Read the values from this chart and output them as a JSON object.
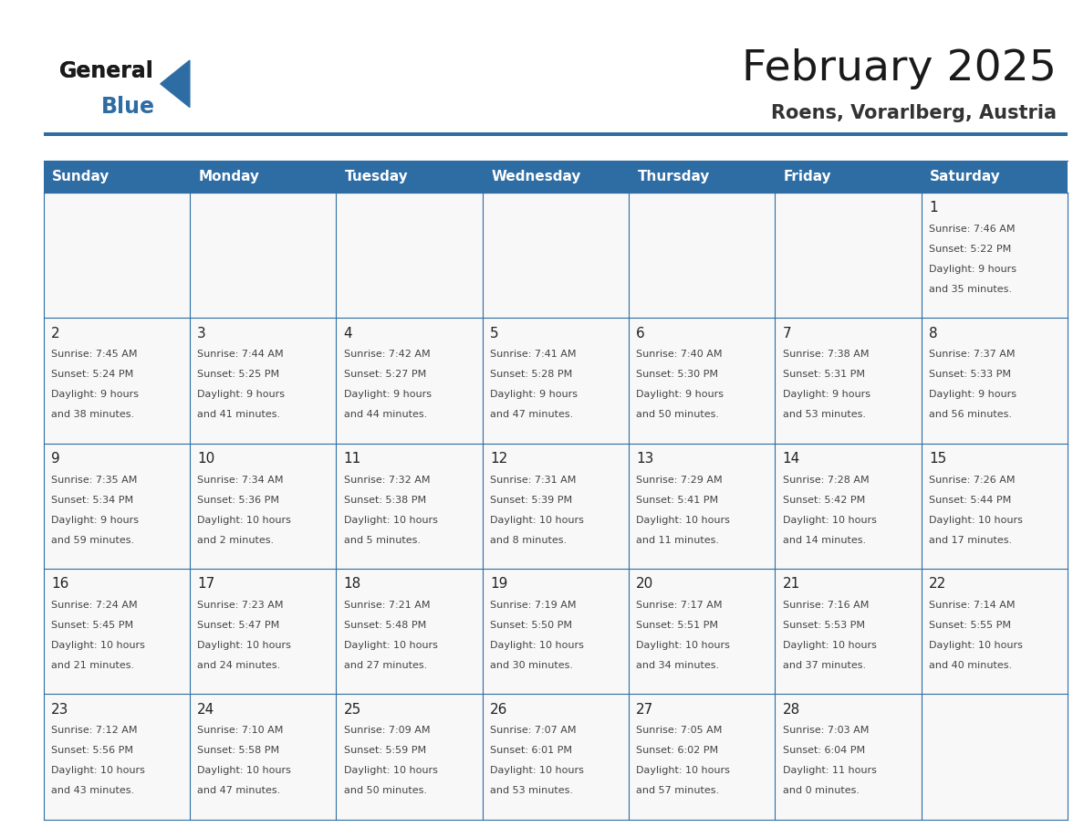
{
  "title": "February 2025",
  "subtitle": "Roens, Vorarlberg, Austria",
  "header_bg": "#2E6DA4",
  "header_text": "#FFFFFF",
  "cell_bg": "#F8F8F8",
  "grid_line_color": "#2E6DA4",
  "day_headers": [
    "Sunday",
    "Monday",
    "Tuesday",
    "Wednesday",
    "Thursday",
    "Friday",
    "Saturday"
  ],
  "logo_color_general": "#1a1a1a",
  "logo_color_blue": "#2E6DA4",
  "title_color": "#1a1a1a",
  "subtitle_color": "#333333",
  "days": [
    {
      "day": 1,
      "col": 6,
      "row": 0,
      "sunrise": "7:46 AM",
      "sunset": "5:22 PM",
      "daylight": "9 hours",
      "daylight2": "and 35 minutes."
    },
    {
      "day": 2,
      "col": 0,
      "row": 1,
      "sunrise": "7:45 AM",
      "sunset": "5:24 PM",
      "daylight": "9 hours",
      "daylight2": "and 38 minutes."
    },
    {
      "day": 3,
      "col": 1,
      "row": 1,
      "sunrise": "7:44 AM",
      "sunset": "5:25 PM",
      "daylight": "9 hours",
      "daylight2": "and 41 minutes."
    },
    {
      "day": 4,
      "col": 2,
      "row": 1,
      "sunrise": "7:42 AM",
      "sunset": "5:27 PM",
      "daylight": "9 hours",
      "daylight2": "and 44 minutes."
    },
    {
      "day": 5,
      "col": 3,
      "row": 1,
      "sunrise": "7:41 AM",
      "sunset": "5:28 PM",
      "daylight": "9 hours",
      "daylight2": "and 47 minutes."
    },
    {
      "day": 6,
      "col": 4,
      "row": 1,
      "sunrise": "7:40 AM",
      "sunset": "5:30 PM",
      "daylight": "9 hours",
      "daylight2": "and 50 minutes."
    },
    {
      "day": 7,
      "col": 5,
      "row": 1,
      "sunrise": "7:38 AM",
      "sunset": "5:31 PM",
      "daylight": "9 hours",
      "daylight2": "and 53 minutes."
    },
    {
      "day": 8,
      "col": 6,
      "row": 1,
      "sunrise": "7:37 AM",
      "sunset": "5:33 PM",
      "daylight": "9 hours",
      "daylight2": "and 56 minutes."
    },
    {
      "day": 9,
      "col": 0,
      "row": 2,
      "sunrise": "7:35 AM",
      "sunset": "5:34 PM",
      "daylight": "9 hours",
      "daylight2": "and 59 minutes."
    },
    {
      "day": 10,
      "col": 1,
      "row": 2,
      "sunrise": "7:34 AM",
      "sunset": "5:36 PM",
      "daylight": "10 hours",
      "daylight2": "and 2 minutes."
    },
    {
      "day": 11,
      "col": 2,
      "row": 2,
      "sunrise": "7:32 AM",
      "sunset": "5:38 PM",
      "daylight": "10 hours",
      "daylight2": "and 5 minutes."
    },
    {
      "day": 12,
      "col": 3,
      "row": 2,
      "sunrise": "7:31 AM",
      "sunset": "5:39 PM",
      "daylight": "10 hours",
      "daylight2": "and 8 minutes."
    },
    {
      "day": 13,
      "col": 4,
      "row": 2,
      "sunrise": "7:29 AM",
      "sunset": "5:41 PM",
      "daylight": "10 hours",
      "daylight2": "and 11 minutes."
    },
    {
      "day": 14,
      "col": 5,
      "row": 2,
      "sunrise": "7:28 AM",
      "sunset": "5:42 PM",
      "daylight": "10 hours",
      "daylight2": "and 14 minutes."
    },
    {
      "day": 15,
      "col": 6,
      "row": 2,
      "sunrise": "7:26 AM",
      "sunset": "5:44 PM",
      "daylight": "10 hours",
      "daylight2": "and 17 minutes."
    },
    {
      "day": 16,
      "col": 0,
      "row": 3,
      "sunrise": "7:24 AM",
      "sunset": "5:45 PM",
      "daylight": "10 hours",
      "daylight2": "and 21 minutes."
    },
    {
      "day": 17,
      "col": 1,
      "row": 3,
      "sunrise": "7:23 AM",
      "sunset": "5:47 PM",
      "daylight": "10 hours",
      "daylight2": "and 24 minutes."
    },
    {
      "day": 18,
      "col": 2,
      "row": 3,
      "sunrise": "7:21 AM",
      "sunset": "5:48 PM",
      "daylight": "10 hours",
      "daylight2": "and 27 minutes."
    },
    {
      "day": 19,
      "col": 3,
      "row": 3,
      "sunrise": "7:19 AM",
      "sunset": "5:50 PM",
      "daylight": "10 hours",
      "daylight2": "and 30 minutes."
    },
    {
      "day": 20,
      "col": 4,
      "row": 3,
      "sunrise": "7:17 AM",
      "sunset": "5:51 PM",
      "daylight": "10 hours",
      "daylight2": "and 34 minutes."
    },
    {
      "day": 21,
      "col": 5,
      "row": 3,
      "sunrise": "7:16 AM",
      "sunset": "5:53 PM",
      "daylight": "10 hours",
      "daylight2": "and 37 minutes."
    },
    {
      "day": 22,
      "col": 6,
      "row": 3,
      "sunrise": "7:14 AM",
      "sunset": "5:55 PM",
      "daylight": "10 hours",
      "daylight2": "and 40 minutes."
    },
    {
      "day": 23,
      "col": 0,
      "row": 4,
      "sunrise": "7:12 AM",
      "sunset": "5:56 PM",
      "daylight": "10 hours",
      "daylight2": "and 43 minutes."
    },
    {
      "day": 24,
      "col": 1,
      "row": 4,
      "sunrise": "7:10 AM",
      "sunset": "5:58 PM",
      "daylight": "10 hours",
      "daylight2": "and 47 minutes."
    },
    {
      "day": 25,
      "col": 2,
      "row": 4,
      "sunrise": "7:09 AM",
      "sunset": "5:59 PM",
      "daylight": "10 hours",
      "daylight2": "and 50 minutes."
    },
    {
      "day": 26,
      "col": 3,
      "row": 4,
      "sunrise": "7:07 AM",
      "sunset": "6:01 PM",
      "daylight": "10 hours",
      "daylight2": "and 53 minutes."
    },
    {
      "day": 27,
      "col": 4,
      "row": 4,
      "sunrise": "7:05 AM",
      "sunset": "6:02 PM",
      "daylight": "10 hours",
      "daylight2": "and 57 minutes."
    },
    {
      "day": 28,
      "col": 5,
      "row": 4,
      "sunrise": "7:03 AM",
      "sunset": "6:04 PM",
      "daylight": "11 hours",
      "daylight2": "and 0 minutes."
    }
  ]
}
